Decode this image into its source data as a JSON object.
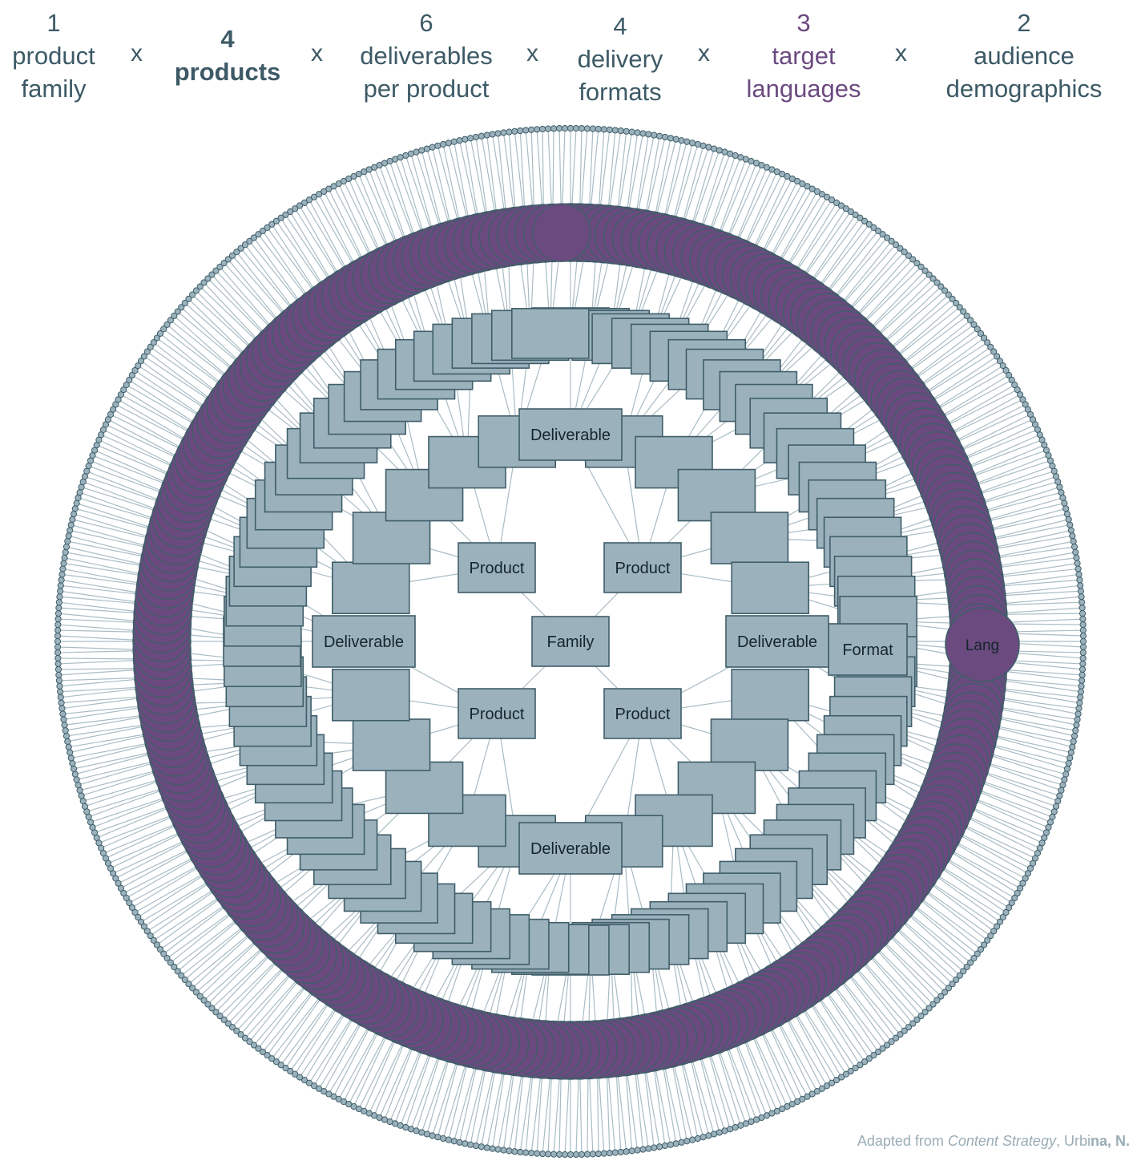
{
  "header": {
    "factors": [
      {
        "count": "1",
        "label_lines": [
          "product",
          "family"
        ],
        "color": "#3d5a66"
      },
      {
        "count": "4",
        "label_lines": [
          "products"
        ],
        "color": "#3d5a66"
      },
      {
        "count": "6",
        "label_lines": [
          "deliverables",
          "per product"
        ],
        "color": "#3d5a66"
      },
      {
        "count": "4",
        "label_lines": [
          "delivery",
          "formats"
        ],
        "color": "#3d5a66"
      },
      {
        "count": "3",
        "label_lines": [
          "target",
          "languages"
        ],
        "color": "#6b4a80"
      },
      {
        "count": "2",
        "label_lines": [
          "audience",
          "demographics"
        ],
        "color": "#3d5a66"
      }
    ],
    "operator": "x"
  },
  "diagram": {
    "center_label": "Family",
    "product_label": "Product",
    "deliverable_label": "Deliverable",
    "format_label": "Format",
    "language_label": "Lang",
    "counts": {
      "products": 4,
      "deliverables": 24,
      "formats": 96,
      "languages": 288,
      "demographics": 576
    },
    "colors": {
      "box_fill": "#9bb2bd",
      "box_stroke": "#3f5e69",
      "edge": "#a9bcc5",
      "language_fill": "#6b4a80",
      "language_stroke": "#3f5e69",
      "dot_fill": "#9bb2bd",
      "dot_stroke": "#3f5e69"
    }
  },
  "credit": {
    "prefix": "Adapted from ",
    "title": "Content Strategy",
    "sep": ", Urbi",
    "author_bold": "na, N."
  }
}
